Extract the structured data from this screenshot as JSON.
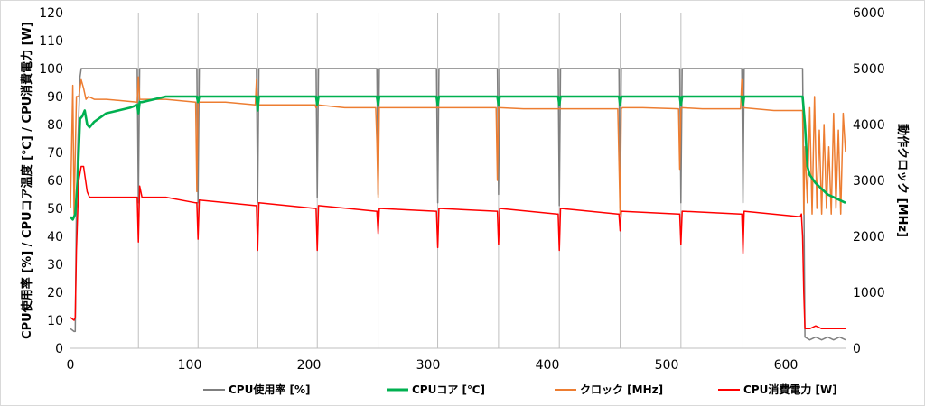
{
  "chart_data": {
    "type": "line",
    "title": "",
    "xlabel": "",
    "ylabel_left": "CPU使用率 [%] / CPUコア温度 [℃] / CPU消費電力 [W]",
    "ylabel_right": "動作クロック [MHz]",
    "xlim": [
      0,
      650
    ],
    "ylim_left": [
      0,
      120
    ],
    "ylim_right": [
      0,
      6000
    ],
    "x_ticks": [
      "0",
      "100",
      "200",
      "300",
      "400",
      "500",
      "600"
    ],
    "y_left_ticks": [
      "0",
      "10",
      "20",
      "30",
      "40",
      "50",
      "60",
      "70",
      "80",
      "90",
      "100",
      "110",
      "120"
    ],
    "y_right_ticks": [
      "0",
      "1000",
      "2000",
      "3000",
      "4000",
      "5000",
      "6000"
    ],
    "grid": "vertical",
    "legend_position": "bottom",
    "dip_times": [
      57,
      107,
      157,
      207,
      258,
      308,
      359,
      410,
      461,
      512,
      564
    ],
    "series": [
      {
        "name": "CPU使用率 [%]",
        "color": "#7f7f7f",
        "axis": "left",
        "x": [
          0,
          3,
          4,
          5,
          6,
          8,
          9,
          10,
          56,
          57,
          58,
          106,
          107,
          108,
          156,
          157,
          158,
          206,
          207,
          208,
          257,
          258,
          259,
          307,
          308,
          309,
          358,
          359,
          360,
          409,
          410,
          411,
          460,
          461,
          462,
          511,
          512,
          513,
          563,
          564,
          565,
          614,
          615,
          616,
          620,
          625,
          630,
          635,
          640,
          645,
          650
        ],
        "y": [
          7,
          6,
          6,
          50,
          70,
          97,
          100,
          100,
          100,
          52,
          100,
          100,
          52,
          100,
          100,
          52,
          100,
          100,
          54,
          100,
          100,
          55,
          100,
          100,
          52,
          100,
          100,
          55,
          100,
          100,
          51,
          100,
          100,
          50,
          100,
          100,
          52,
          100,
          100,
          52,
          100,
          100,
          60,
          4,
          3,
          4,
          3,
          4,
          3,
          4,
          3
        ]
      },
      {
        "name": "CPUコア [℃]",
        "color": "#00b050",
        "axis": "left",
        "x": [
          0,
          2,
          4,
          6,
          8,
          10,
          12,
          14,
          16,
          20,
          30,
          40,
          50,
          56,
          57,
          58,
          60,
          70,
          80,
          90,
          106,
          107,
          108,
          156,
          157,
          158,
          206,
          207,
          208,
          257,
          258,
          259,
          307,
          308,
          309,
          358,
          359,
          360,
          409,
          410,
          411,
          460,
          461,
          462,
          511,
          512,
          513,
          563,
          564,
          565,
          614,
          616,
          618,
          620,
          625,
          630,
          635,
          640,
          645,
          650
        ],
        "y": [
          47,
          46,
          48,
          60,
          82,
          83,
          85,
          80,
          79,
          81,
          84,
          85,
          86,
          87,
          84,
          88,
          88,
          89,
          90,
          90,
          90,
          88,
          90,
          90,
          85,
          90,
          90,
          87,
          90,
          90,
          87,
          90,
          90,
          87,
          90,
          90,
          87,
          90,
          90,
          87,
          90,
          90,
          87,
          90,
          90,
          87,
          90,
          90,
          87,
          90,
          90,
          80,
          65,
          62,
          59,
          57,
          55,
          54,
          53,
          52
        ]
      },
      {
        "name": "クロック [MHz]",
        "color": "#ed7d31",
        "axis": "right",
        "x": [
          0,
          2,
          3,
          5,
          7,
          9,
          11,
          13,
          15,
          20,
          30,
          40,
          56,
          57,
          58,
          80,
          105,
          106,
          107,
          130,
          155,
          156,
          157,
          180,
          205,
          206,
          207,
          230,
          256,
          257,
          258,
          259,
          280,
          357,
          358,
          359,
          360,
          380,
          459,
          460,
          461,
          462,
          463,
          480,
          510,
          511,
          512,
          513,
          530,
          562,
          563,
          564,
          590,
          614,
          615,
          616,
          618,
          620,
          622,
          624,
          626,
          628,
          630,
          632,
          634,
          636,
          638,
          640,
          642,
          644,
          646,
          648,
          650
        ],
        "y": [
          2500,
          4700,
          2400,
          4500,
          4500,
          4800,
          4650,
          4450,
          4500,
          4450,
          4450,
          4430,
          4400,
          4850,
          4450,
          4450,
          4400,
          2800,
          4400,
          4400,
          4350,
          4800,
          4350,
          4350,
          4350,
          4300,
          4350,
          4300,
          4300,
          3700,
          2700,
          4300,
          4300,
          4300,
          3000,
          4300,
          4300,
          4280,
          4280,
          3350,
          2400,
          4280,
          4300,
          4300,
          4280,
          3200,
          4280,
          4300,
          4280,
          4280,
          4800,
          4300,
          4250,
          4250,
          2400,
          3600,
          2600,
          4300,
          2400,
          4500,
          2500,
          3900,
          2400,
          4000,
          2500,
          3600,
          2400,
          4200,
          2500,
          3900,
          2400,
          4200,
          3500
        ]
      },
      {
        "name": "CPU消費電力 [W]",
        "color": "#ff0000",
        "axis": "left",
        "x": [
          0,
          3,
          4,
          5,
          7,
          9,
          11,
          14,
          16,
          20,
          56,
          57,
          58,
          60,
          80,
          105,
          106,
          107,
          108,
          155,
          156,
          157,
          158,
          205,
          206,
          207,
          208,
          256,
          257,
          258,
          259,
          306,
          307,
          308,
          309,
          357,
          358,
          359,
          360,
          408,
          409,
          410,
          411,
          459,
          460,
          461,
          462,
          510,
          511,
          512,
          513,
          562,
          563,
          564,
          565,
          612,
          613,
          614,
          615,
          616,
          620,
          625,
          630,
          640,
          650
        ],
        "y": [
          11,
          10,
          11,
          35,
          60,
          65,
          65,
          56,
          54,
          54,
          54,
          38,
          58,
          54,
          54,
          52,
          52,
          39,
          53,
          51,
          51,
          35,
          52,
          50,
          50,
          35,
          51,
          49,
          49,
          41,
          50,
          49,
          49,
          36,
          50,
          49,
          49,
          37,
          50,
          48,
          48,
          35,
          50,
          48,
          48,
          42,
          49,
          48,
          48,
          37,
          49,
          48,
          48,
          34,
          49,
          47,
          48,
          40,
          20,
          7,
          7,
          8,
          7,
          7,
          7
        ]
      }
    ]
  }
}
